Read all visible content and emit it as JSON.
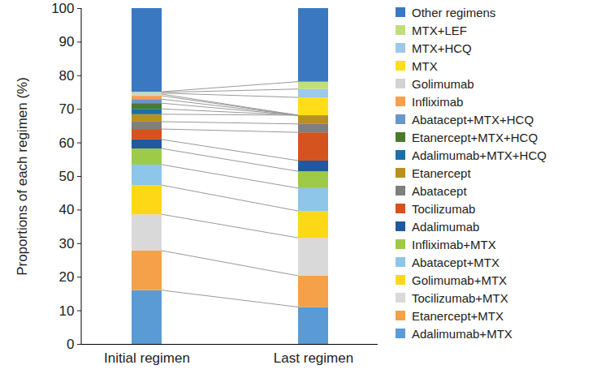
{
  "chart_data": {
    "type": "bar",
    "stacked": true,
    "legend": "right",
    "ylabel": "Proportions of each regimen (%)",
    "categories": [
      "Initial regimen",
      "Last regimen"
    ],
    "ylim": [
      0,
      100
    ],
    "yticks": [
      0,
      10,
      20,
      30,
      40,
      50,
      60,
      70,
      80,
      90,
      100
    ],
    "series": [
      {
        "name": "Adalimumab+MTX",
        "color": "#5b9bd5",
        "values": [
          16,
          11
        ]
      },
      {
        "name": "Etanercept+MTX",
        "color": "#f4a14a",
        "values": [
          11.8,
          9.3
        ]
      },
      {
        "name": "Tocilizumab+MTX",
        "color": "#d9d9d9",
        "values": [
          10.8,
          11.3
        ]
      },
      {
        "name": "Golimumab+MTX",
        "color": "#fcd817",
        "values": [
          8.7,
          8
        ]
      },
      {
        "name": "Abatacept+MTX",
        "color": "#8ec6ea",
        "values": [
          6.1,
          6.8
        ]
      },
      {
        "name": "Infliximab+MTX",
        "color": "#9dcb47",
        "values": [
          4.8,
          5
        ]
      },
      {
        "name": "Adalimumab",
        "color": "#1f5a9e",
        "values": [
          2.7,
          3.2
        ]
      },
      {
        "name": "Tocilizumab",
        "color": "#d4531e",
        "values": [
          3.1,
          8.4
        ]
      },
      {
        "name": "Abatacept",
        "color": "#7f7f7f",
        "values": [
          2.2,
          2.5
        ]
      },
      {
        "name": "Etanercept",
        "color": "#b8901c",
        "values": [
          2.2,
          2.6
        ]
      },
      {
        "name": "Adalimumab+MTX+HCQ",
        "color": "#1a6fa8",
        "values": [
          1.6,
          0
        ]
      },
      {
        "name": "Etanercept+MTX+HCQ",
        "color": "#4a7a2c",
        "values": [
          1.7,
          0
        ]
      },
      {
        "name": "Abatacept+MTX+HCQ",
        "color": "#6a97c9",
        "values": [
          1.2,
          0
        ]
      },
      {
        "name": "Infliximab",
        "color": "#f5a050",
        "values": [
          1.0,
          0
        ]
      },
      {
        "name": "Golimumab",
        "color": "#d3d3d3",
        "values": [
          0.5,
          0
        ]
      },
      {
        "name": "MTX",
        "color": "#ffde17",
        "values": [
          0.3,
          5.3
        ]
      },
      {
        "name": "MTX+HCQ",
        "color": "#9cc9ea",
        "values": [
          0.2,
          2.5
        ]
      },
      {
        "name": "MTX+LEF",
        "color": "#c2dd7c",
        "values": [
          0.2,
          2.2
        ]
      },
      {
        "name": "Other regimens",
        "color": "#3a78c2",
        "values": [
          24.9,
          21.9
        ]
      }
    ]
  }
}
